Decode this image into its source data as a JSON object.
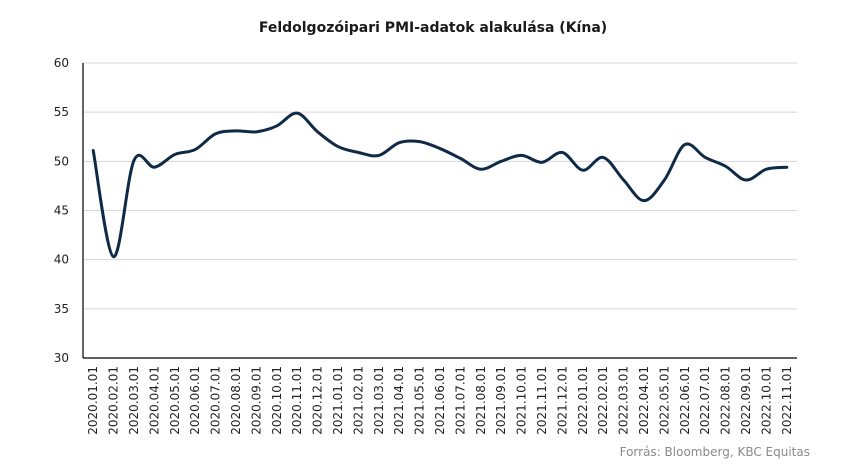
{
  "chart_data": {
    "type": "line",
    "title": "Feldolgozóipari PMI-adatok alakulása (Kína)",
    "xlabel": "",
    "ylabel": "",
    "ylim": [
      30,
      60
    ],
    "yticks": [
      30,
      35,
      40,
      45,
      50,
      55,
      60
    ],
    "grid": true,
    "line_color": "#0e2a47",
    "categories": [
      "2020.01.01",
      "2020.02.01",
      "2020.03.01",
      "2020.04.01",
      "2020.05.01",
      "2020.06.01",
      "2020.07.01",
      "2020.08.01",
      "2020.09.01",
      "2020.10.01",
      "2020.11.01",
      "2020.12.01",
      "2021.01.01",
      "2021.02.01",
      "2021.03.01",
      "2021.04.01",
      "2021.05.01",
      "2021.06.01",
      "2021.07.01",
      "2021.08.01",
      "2021.09.01",
      "2021.10.01",
      "2021.11.01",
      "2021.12.01",
      "2022.01.01",
      "2022.02.01",
      "2022.03.01",
      "2022.04.01",
      "2022.05.01",
      "2022.06.01",
      "2022.07.01",
      "2022.08.01",
      "2022.09.01",
      "2022.10.01",
      "2022.11.01"
    ],
    "series": [
      {
        "values": [
          51.1,
          40.3,
          50.1,
          49.4,
          50.7,
          51.2,
          52.8,
          53.1,
          53.0,
          53.6,
          54.9,
          53.0,
          51.5,
          50.9,
          50.6,
          51.9,
          52.0,
          51.3,
          50.3,
          49.2,
          50.0,
          50.6,
          49.9,
          50.9,
          49.1,
          50.4,
          48.1,
          46.0,
          48.1,
          51.7,
          50.4,
          49.5,
          48.1,
          49.2,
          49.4
        ]
      }
    ],
    "source": "Forrás: Bloomberg,  KBC Equitas"
  }
}
